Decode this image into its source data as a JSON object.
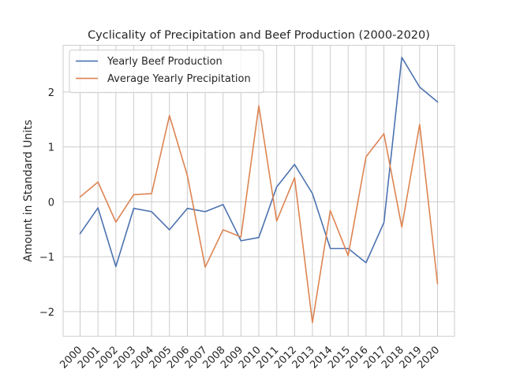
{
  "chart_data": {
    "type": "line",
    "title": "Cyclicality of Precipitation and Beef Production (2000-2020)",
    "xlabel": "",
    "ylabel": "Amount in Standard Units",
    "x": [
      "2000",
      "2001",
      "2002",
      "2003",
      "2004",
      "2005",
      "2006",
      "2007",
      "2008",
      "2009",
      "2010",
      "2011",
      "2012",
      "2013",
      "2014",
      "2015",
      "2016",
      "2017",
      "2018",
      "2019",
      "2020"
    ],
    "ylim": [
      -2.45,
      2.85
    ],
    "yticks": [
      -2,
      -1,
      0,
      1,
      2
    ],
    "grid": true,
    "legend": "top-left",
    "series": [
      {
        "name": "Yearly Beef Production",
        "color": "#4c72b0",
        "values": [
          -0.58,
          -0.11,
          -1.18,
          -0.12,
          -0.18,
          -0.51,
          -0.12,
          -0.18,
          -0.05,
          -0.71,
          -0.65,
          0.27,
          0.68,
          0.15,
          -0.85,
          -0.85,
          -1.11,
          -0.38,
          2.63,
          2.09,
          1.82
        ]
      },
      {
        "name": "Average Yearly Precipitation",
        "color": "#dd8452",
        "values": [
          0.09,
          0.36,
          -0.37,
          0.13,
          0.15,
          1.57,
          0.48,
          -1.19,
          -0.51,
          -0.64,
          1.75,
          -0.35,
          0.44,
          -2.2,
          -0.16,
          -0.98,
          0.82,
          1.24,
          -0.46,
          1.41,
          -1.49
        ]
      }
    ]
  }
}
